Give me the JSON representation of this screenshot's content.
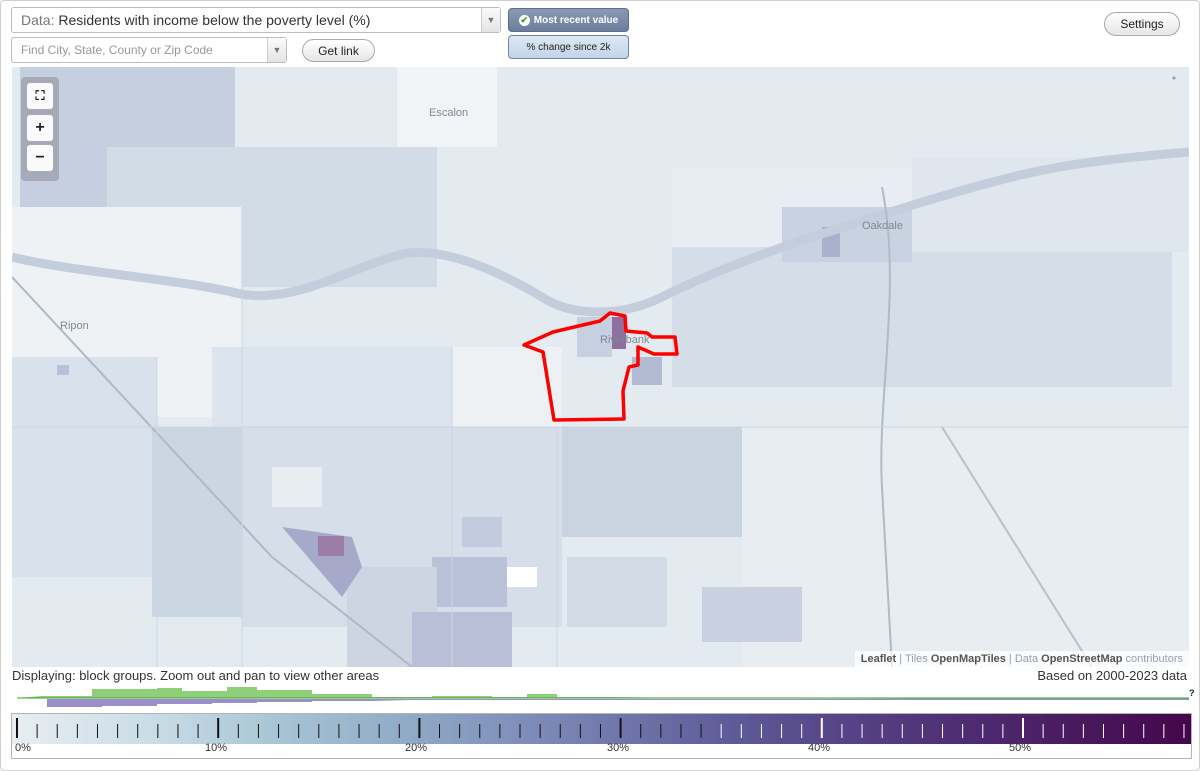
{
  "controls": {
    "data_prefix": "Data:",
    "data_value": "Residents with income below the poverty level (%)",
    "search_placeholder": "Find City, State, County or Zip Code",
    "get_link": "Get link",
    "most_recent": "Most recent value",
    "pct_change": "% change since 2k",
    "settings": "Settings"
  },
  "map": {
    "places": [
      "Escalon",
      "Oakdale",
      "Ripon",
      "Riverbank"
    ],
    "attribution": {
      "leaflet": "Leaflet",
      "sep1": "|",
      "tiles": "Tiles",
      "openmaptiles": "OpenMapTiles",
      "sep2": "|",
      "data": "Data",
      "osm": "OpenStreetMap",
      "contributors": "contributors"
    },
    "selection_color": "#ff0000"
  },
  "footer": {
    "displaying": "Displaying: block groups. Zoom out and pan to view other areas",
    "based_on": "Based on 2000-2023 data",
    "help": "?"
  },
  "legend": {
    "ticks": [
      "0%",
      "10%",
      "20%",
      "30%",
      "40%",
      "50%"
    ],
    "colors": {
      "low": "#e9eef2",
      "mid": "#8fa9c6",
      "high": "#44064a"
    }
  },
  "histogram": {
    "green": "#8fcf7a",
    "purple": "#9b8fc9"
  }
}
